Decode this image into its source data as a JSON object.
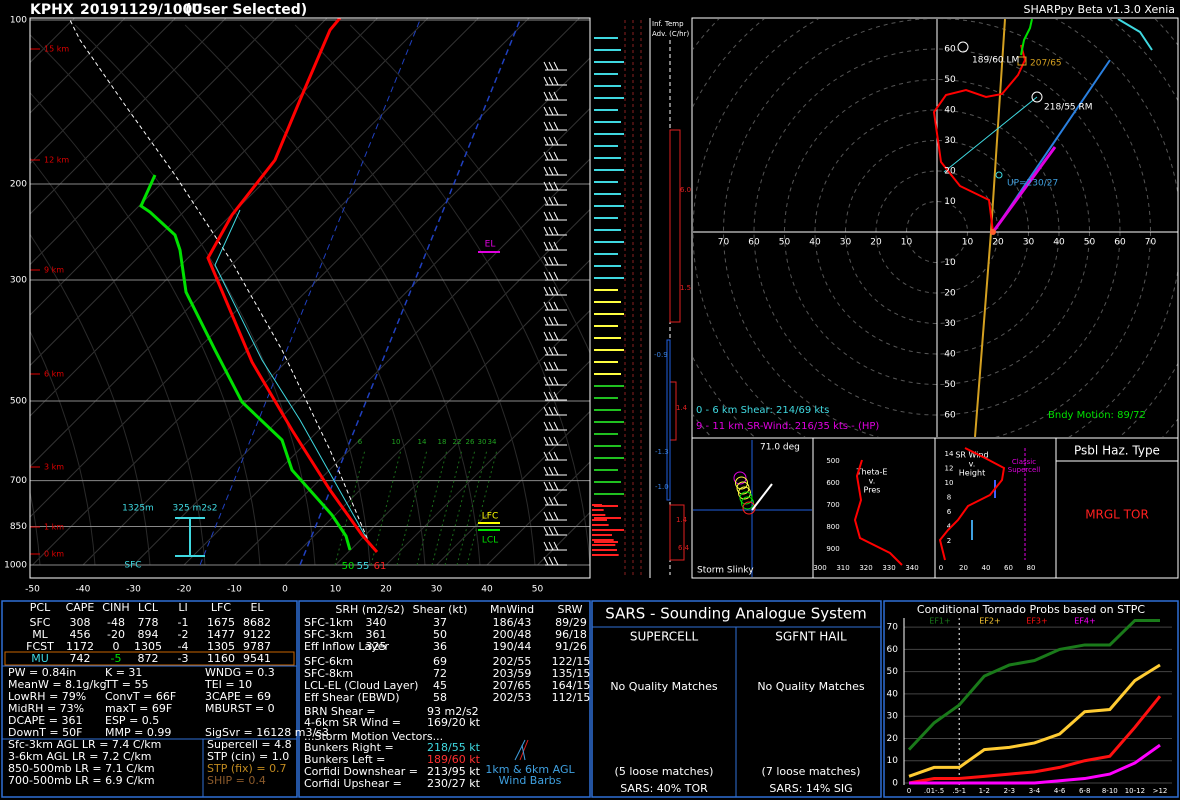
{
  "header": {
    "station": "KPHX",
    "datetime": "20191129/1000",
    "mode": "(User Selected)",
    "app": "SHARPpy Beta v1.3.0 Xenia"
  },
  "skewt": {
    "pressure_labels": [
      100,
      200,
      300,
      500,
      700,
      850,
      1000
    ],
    "height_labels": [
      "15 km",
      "12 km",
      "9 km",
      "6 km",
      "3 km",
      "1 km",
      "0 km"
    ],
    "temp_labels": [
      -50,
      -40,
      -30,
      -20,
      -10,
      0,
      10,
      20,
      30,
      40,
      50
    ],
    "mixing_ratio_labels": [
      6,
      10,
      14,
      18,
      22,
      26,
      30,
      34
    ],
    "el": "EL",
    "lfc": "LFC",
    "lcl": "LCL",
    "eff_inflow_depth": "1325m",
    "eff_inflow_srh": "325 m2s2",
    "sfc": "SFC",
    "sfc_dewpoint": 50,
    "sfc_wetbulb": 55,
    "sfc_temp": 61
  },
  "temp_adv": {
    "title": [
      "Inf. Temp",
      "Adv. (C/hr)"
    ],
    "values": [
      "6.0",
      "1.5",
      "-0.9",
      "1.4",
      "-1.3",
      "-1.0",
      "1.4",
      "6.4"
    ]
  },
  "hodograph": {
    "ring_labels": [
      10,
      20,
      30,
      40,
      50,
      60,
      70
    ],
    "vertical_labels": [
      10,
      20,
      30,
      40,
      50,
      60
    ],
    "left_mover": "189/60 LM",
    "cloud_layer": "207/65",
    "right_mover": "218/55 RM",
    "upshear": "UP=230/27",
    "shear_06": "0 - 6 km Shear: 214/69 kts",
    "sr_wind_911": "9 - 11 km SR-Wind: 216/35 kts - (HP)",
    "boundary_motion": "Bndy Motion: 89/72"
  },
  "storm_slinky": {
    "angle": "71.0 deg",
    "title": "Storm Slinky"
  },
  "theta_e": {
    "title": [
      "Theta-E",
      "v.",
      "Pres"
    ],
    "pressure_labels": [
      500,
      600,
      700,
      800,
      900
    ],
    "theta_labels": [
      300,
      310,
      320,
      330,
      340
    ]
  },
  "sr_wind": {
    "title": [
      "SR Wind",
      "v.",
      "Height"
    ],
    "classification": [
      "Classic",
      "Supercell"
    ],
    "height_labels": [
      14,
      12,
      10,
      8,
      6,
      4,
      2
    ],
    "speed_labels": [
      0,
      20,
      40,
      60,
      80
    ]
  },
  "hazard": {
    "title": "Psbl Haz. Type",
    "type": "MRGL TOR"
  },
  "thermo": {
    "header": [
      "PCL",
      "CAPE",
      "CINH",
      "LCL",
      "LI",
      "LFC",
      "EL"
    ],
    "rows": [
      [
        "SFC",
        "308",
        "-48",
        "778",
        "-1",
        "1675",
        "8682"
      ],
      [
        "ML",
        "456",
        "-20",
        "894",
        "-2",
        "1477",
        "9122"
      ],
      [
        "FCST",
        "1172",
        "0",
        "1305",
        "-4",
        "1305",
        "9787"
      ],
      [
        "MU",
        "742",
        "-5",
        "872",
        "-3",
        "1160",
        "9541"
      ]
    ],
    "indices": [
      [
        "PW = 0.84in",
        "K = 31",
        "WNDG = 0.3"
      ],
      [
        "MeanW = 8.1g/kg",
        "TT = 55",
        "TEI = 10"
      ],
      [
        "LowRH = 79%",
        "ConvT = 66F",
        "3CAPE = 69"
      ],
      [
        "MidRH = 73%",
        "maxT = 69F",
        "MBURST = 0"
      ],
      [
        "DCAPE = 361",
        "ESP = 0.5"
      ],
      [
        "DownT = 50F",
        "MMP = 0.99",
        "SigSvr = 16128 m3/s3"
      ]
    ],
    "lapse_rates": [
      "Sfc-3km AGL LR = 7.4 C/km",
      "3-6km AGL LR = 7.2 C/km",
      "850-500mb LR = 7.1 C/km",
      "700-500mb LR = 6.9 C/km"
    ],
    "composites": [
      "Supercell = 4.8",
      "STP (cin) = 1.0",
      "STP (fix) = 0.7",
      "SHIP = 0.4"
    ]
  },
  "kinematics": {
    "header": [
      "SRH (m2/s2)",
      "Shear (kt)",
      "MnWind",
      "SRW"
    ],
    "rows_srh": [
      [
        "SFC-1km",
        "340",
        "37",
        "186/43",
        "89/29"
      ],
      [
        "SFC-3km",
        "361",
        "50",
        "200/48",
        "96/18"
      ],
      [
        "Eff Inflow Layer",
        "325",
        "36",
        "190/44",
        "91/26"
      ]
    ],
    "rows_shear": [
      [
        "SFC-6km",
        "69",
        "202/55",
        "122/15"
      ],
      [
        "SFC-8km",
        "72",
        "203/59",
        "135/15"
      ],
      [
        "LCL-EL (Cloud Layer)",
        "45",
        "207/65",
        "164/15"
      ],
      [
        "Eff Shear (EBWD)",
        "58",
        "202/53",
        "112/15"
      ]
    ],
    "brn_shear": [
      "BRN Shear =",
      "93 m2/s2"
    ],
    "sr_wind_46": [
      "4-6km SR Wind =",
      "169/20 kt"
    ],
    "storm_motion_title": "...Storm Motion Vectors...",
    "storm_motion": [
      [
        "Bunkers Right =",
        "218/55 kt"
      ],
      [
        "Bunkers Left =",
        "189/60 kt"
      ],
      [
        "Corfidi Downshear =",
        "213/95 kt"
      ],
      [
        "Corfidi Upshear =",
        "230/27 kt"
      ]
    ],
    "barbs_note": [
      "1km & 6km AGL",
      "Wind Barbs"
    ]
  },
  "sars": {
    "title": "SARS - Sounding Analogue System",
    "columns": [
      {
        "title": "SUPERCELL",
        "quality": "No Quality Matches",
        "loose": "(5 loose matches)",
        "result": "SARS: 40% TOR"
      },
      {
        "title": "SGFNT HAIL",
        "quality": "No Quality Matches",
        "loose": "(7 loose matches)",
        "result": "SARS: 14% SIG"
      }
    ]
  },
  "stp_chart": {
    "type": "line",
    "title": "Conditional Tornado Probs based on STPC",
    "categories": [
      "0",
      ".01-.5",
      ".5-1",
      "1-2",
      "2-3",
      "3-4",
      "4-6",
      "6-8",
      "8-10",
      "10-12",
      ">12"
    ],
    "series": [
      {
        "name": "EF1+",
        "color": "#1a7a1a",
        "values": [
          15,
          27,
          35,
          48,
          53,
          55,
          60,
          62,
          62,
          73,
          73
        ]
      },
      {
        "name": "EF2+",
        "color": "#ffcc33",
        "values": [
          3,
          7,
          7,
          15,
          16,
          18,
          22,
          32,
          33,
          46,
          53
        ]
      },
      {
        "name": "EF3+",
        "color": "#ff1010",
        "values": [
          0,
          2,
          2,
          3,
          4,
          5,
          7,
          10,
          12,
          25,
          39
        ]
      },
      {
        "name": "EF4+",
        "color": "#ff00ff",
        "values": [
          0,
          0,
          0,
          0,
          0,
          0,
          1,
          2,
          4,
          9,
          17
        ]
      }
    ],
    "ylim": [
      0,
      75
    ],
    "yticks": [
      0,
      10,
      20,
      30,
      40,
      50,
      60,
      70
    ],
    "grid": true
  }
}
